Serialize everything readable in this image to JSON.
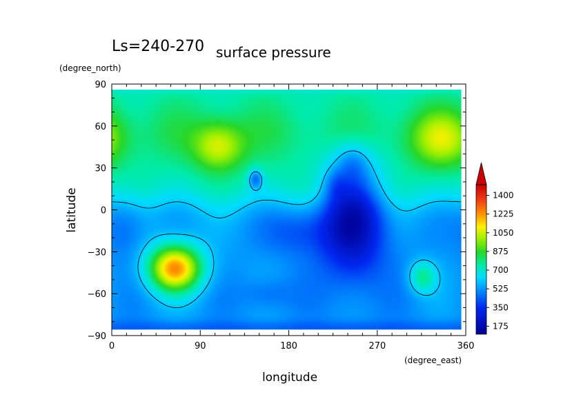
{
  "chart_data": {
    "type": "heatmap",
    "title": "surface pressure",
    "subtitle": "Ls=240-270",
    "xlabel": "longitude",
    "xunit": "(degree_east)",
    "ylabel": "latitude",
    "yunit": "(degree_north)",
    "xlim": [
      0,
      360
    ],
    "ylim": [
      -90,
      90
    ],
    "x_ticks": [
      0,
      90,
      180,
      270,
      360
    ],
    "y_ticks": [
      -90,
      -60,
      -30,
      0,
      30,
      60,
      90
    ],
    "colorbar": {
      "ticks": [
        175,
        350,
        525,
        700,
        875,
        1050,
        1225,
        1400
      ],
      "range": [
        100,
        1500
      ],
      "extend": "max"
    },
    "contour_level": 600,
    "features": [
      {
        "lon": 65,
        "lat": -42,
        "value": 1100,
        "label": "high"
      },
      {
        "lon": 110,
        "lat": 45,
        "value": 1000,
        "label": "high"
      },
      {
        "lon": 340,
        "lat": 50,
        "value": 950,
        "label": "high"
      },
      {
        "lon": 320,
        "lat": -48,
        "value": 780,
        "label": "high"
      },
      {
        "lon": 248,
        "lat": -8,
        "value": 300,
        "label": "low"
      },
      {
        "lon": 250,
        "lat": 35,
        "value": 380,
        "label": "low"
      },
      {
        "lon": 230,
        "lat": 18,
        "value": 420,
        "label": "low"
      },
      {
        "lon": 148,
        "lat": 22,
        "value": 450,
        "label": "low"
      }
    ]
  }
}
